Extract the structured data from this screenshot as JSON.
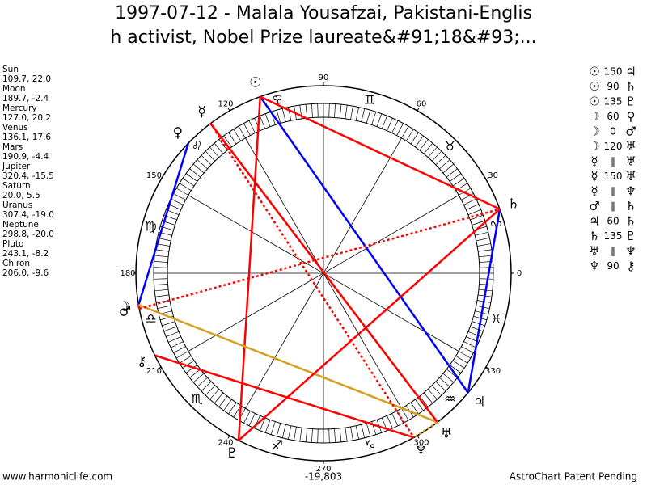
{
  "header": {
    "title_lines": [
      "1997-07-12 - Malala Yousafzai, Pakistani-Englis",
      "h activist, Nobel Prize laureate&#91;18&#93;..."
    ]
  },
  "planets": [
    {
      "name": "Sun",
      "glyph": "☉",
      "position": "109.7, 22.0"
    },
    {
      "name": "Moon",
      "glyph": "☽",
      "position": "189.7, -2.4"
    },
    {
      "name": "Mercury",
      "glyph": "☿",
      "position": "127.0, 20.2"
    },
    {
      "name": "Venus",
      "glyph": "♀",
      "position": "136.1, 17.6"
    },
    {
      "name": "Mars",
      "glyph": "♂",
      "position": "190.9, -4.4"
    },
    {
      "name": "Jupiter",
      "glyph": "♃",
      "position": "320.4, -15.5"
    },
    {
      "name": "Saturn",
      "glyph": "♄",
      "position": "20.0, 5.5"
    },
    {
      "name": "Uranus",
      "glyph": "♅",
      "position": "307.4, -19.0"
    },
    {
      "name": "Neptune",
      "glyph": "♆",
      "position": "298.8, -20.0"
    },
    {
      "name": "Pluto",
      "glyph": "♇",
      "position": "243.1, -8.2"
    },
    {
      "name": "Chiron",
      "glyph": "⚷",
      "position": "206.0, -9.6"
    }
  ],
  "aspects": [
    {
      "from": 0,
      "symbol": "150",
      "to": 5,
      "color": "#0000ff",
      "dashed": false
    },
    {
      "from": 0,
      "symbol": "90",
      "to": 6,
      "color": "#ff0000",
      "dashed": false
    },
    {
      "from": 0,
      "symbol": "135",
      "to": 9,
      "color": "#ff0000",
      "dashed": false
    },
    {
      "from": 1,
      "symbol": "60",
      "to": 3,
      "color": "#0000ff",
      "dashed": false
    },
    {
      "from": 1,
      "symbol": "0",
      "to": 4,
      "color": "#ff0000",
      "dashed": false
    },
    {
      "from": 1,
      "symbol": "120",
      "to": 7,
      "color": "#d4a020",
      "dashed": false
    },
    {
      "from": 2,
      "symbol": "∥",
      "to": 7,
      "color": "#ff0000",
      "dashed": true
    },
    {
      "from": 2,
      "symbol": "150",
      "to": 7,
      "color": "#ff0000",
      "dashed": false
    },
    {
      "from": 2,
      "symbol": "∥",
      "to": 8,
      "color": "#ff0000",
      "dashed": true
    },
    {
      "from": 4,
      "symbol": "∥",
      "to": 6,
      "color": "#ff0000",
      "dashed": true
    },
    {
      "from": 5,
      "symbol": "60",
      "to": 6,
      "color": "#0000ff",
      "dashed": false
    },
    {
      "from": 6,
      "symbol": "135",
      "to": 9,
      "color": "#ff0000",
      "dashed": false
    },
    {
      "from": 7,
      "symbol": "∥",
      "to": 8,
      "color": "#d4a020",
      "dashed": true
    },
    {
      "from": 8,
      "symbol": "90",
      "to": 10,
      "color": "#ff0000",
      "dashed": false
    }
  ],
  "wheel": {
    "degree_labels": [
      "0",
      "30",
      "60",
      "90",
      "120",
      "150",
      "180",
      "210",
      "240",
      "270",
      "300",
      "330"
    ],
    "signs": [
      "♈",
      "♉",
      "♊",
      "♋",
      "♌",
      "♍",
      "♎",
      "♏",
      "♐",
      "♑",
      "♒",
      "♓"
    ]
  },
  "footer": {
    "left": "www.harmoniclife.com",
    "center": "-19,803",
    "right": "AstroChart Patent Pending"
  }
}
